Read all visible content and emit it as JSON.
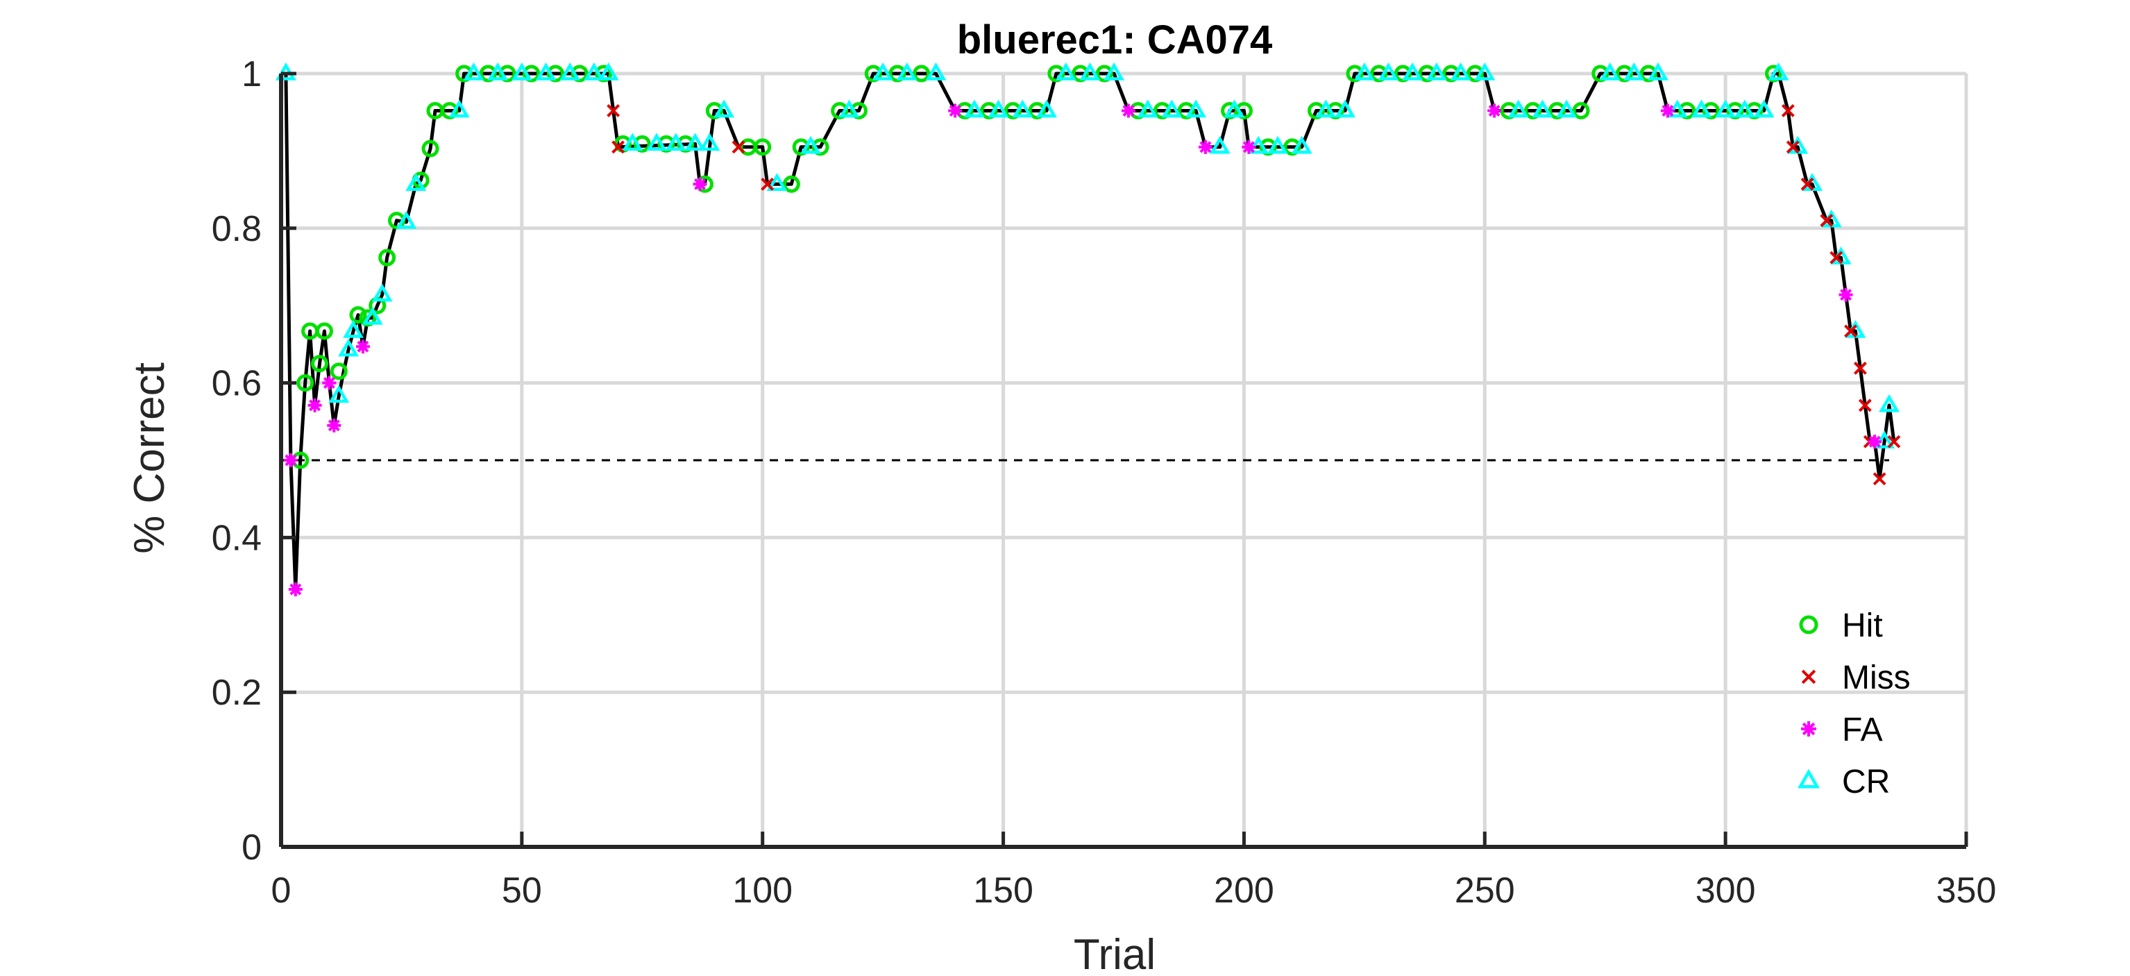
{
  "chart_data": {
    "type": "line",
    "title": "bluerec1: CA074",
    "xlabel": "Trial",
    "ylabel": "% Correct",
    "xlim": [
      0,
      350
    ],
    "ylim": [
      0,
      1
    ],
    "xticks": [
      0,
      50,
      100,
      150,
      200,
      250,
      300,
      350
    ],
    "xtick_labels": [
      "0",
      "50",
      "100",
      "150",
      "200",
      "250",
      "300",
      "350"
    ],
    "yticks": [
      0,
      0.2,
      0.4,
      0.6,
      0.8,
      1
    ],
    "ytick_labels": [
      "0",
      "0.2",
      "0.4",
      "0.6",
      "0.8",
      "1"
    ],
    "grid": true,
    "legend_position": "bottom-right",
    "reference_line": {
      "y": 0.5,
      "x_range": [
        0,
        334
      ],
      "style": "dashed"
    },
    "colors": {
      "line": "#000000",
      "hit": "#00e000",
      "miss": "#e00000",
      "fa": "#ff00ff",
      "cr": "#00ffff",
      "grid": "#d9d9d9",
      "axis": "#262626"
    },
    "series": [
      {
        "name": "Hit",
        "marker": "circle",
        "color": "#00e000",
        "points": [
          [
            4,
            0.5
          ],
          [
            5,
            0.6
          ],
          [
            6,
            0.667
          ],
          [
            8,
            0.625
          ],
          [
            9,
            0.667
          ],
          [
            12,
            0.615
          ],
          [
            16,
            0.688
          ],
          [
            18,
            0.684
          ],
          [
            20,
            0.7
          ],
          [
            22,
            0.762
          ],
          [
            24,
            0.81
          ],
          [
            29,
            0.862
          ],
          [
            31,
            0.903
          ],
          [
            32,
            0.952
          ],
          [
            35,
            0.952
          ],
          [
            38,
            1
          ],
          [
            43,
            1
          ],
          [
            47,
            1
          ],
          [
            52,
            1
          ],
          [
            57,
            1
          ],
          [
            62,
            1
          ],
          [
            67,
            1
          ],
          [
            71,
            0.909
          ],
          [
            75,
            0.909
          ],
          [
            80,
            0.909
          ],
          [
            84,
            0.909
          ],
          [
            88,
            0.857
          ],
          [
            90,
            0.952
          ],
          [
            97,
            0.905
          ],
          [
            100,
            0.905
          ],
          [
            106,
            0.857
          ],
          [
            108,
            0.905
          ],
          [
            112,
            0.905
          ],
          [
            116,
            0.952
          ],
          [
            120,
            0.952
          ],
          [
            123,
            1
          ],
          [
            128,
            1
          ],
          [
            133,
            1
          ],
          [
            142,
            0.952
          ],
          [
            147,
            0.952
          ],
          [
            152,
            0.952
          ],
          [
            157,
            0.952
          ],
          [
            161,
            1
          ],
          [
            166,
            1
          ],
          [
            171,
            1
          ],
          [
            178,
            0.952
          ],
          [
            183,
            0.952
          ],
          [
            188,
            0.952
          ],
          [
            197,
            0.952
          ],
          [
            200,
            0.952
          ],
          [
            205,
            0.905
          ],
          [
            210,
            0.905
          ],
          [
            215,
            0.952
          ],
          [
            219,
            0.952
          ],
          [
            223,
            1
          ],
          [
            228,
            1
          ],
          [
            233,
            1
          ],
          [
            238,
            1
          ],
          [
            243,
            1
          ],
          [
            248,
            1
          ],
          [
            255,
            0.952
          ],
          [
            260,
            0.952
          ],
          [
            265,
            0.952
          ],
          [
            270,
            0.952
          ],
          [
            274,
            1
          ],
          [
            279,
            1
          ],
          [
            284,
            1
          ],
          [
            292,
            0.952
          ],
          [
            297,
            0.952
          ],
          [
            302,
            0.952
          ],
          [
            306,
            0.952
          ],
          [
            310,
            1
          ]
        ]
      },
      {
        "name": "Miss",
        "marker": "x",
        "color": "#e00000",
        "points": [
          [
            69,
            0.952
          ],
          [
            70,
            0.905
          ],
          [
            95,
            0.905
          ],
          [
            101,
            0.857
          ],
          [
            313,
            0.952
          ],
          [
            314,
            0.905
          ],
          [
            317,
            0.857
          ],
          [
            321,
            0.81
          ],
          [
            323,
            0.762
          ],
          [
            326,
            0.667
          ],
          [
            328,
            0.619
          ],
          [
            329,
            0.571
          ],
          [
            330,
            0.524
          ],
          [
            332,
            0.476
          ],
          [
            335,
            0.524
          ]
        ]
      },
      {
        "name": "FA",
        "marker": "asterisk",
        "color": "#ff00ff",
        "points": [
          [
            2,
            0.5
          ],
          [
            3,
            0.333
          ],
          [
            7,
            0.571
          ],
          [
            10,
            0.6
          ],
          [
            11,
            0.545
          ],
          [
            17,
            0.647
          ],
          [
            87,
            0.857
          ],
          [
            140,
            0.952
          ],
          [
            176,
            0.952
          ],
          [
            192,
            0.905
          ],
          [
            201,
            0.905
          ],
          [
            252,
            0.952
          ],
          [
            288,
            0.952
          ],
          [
            325,
            0.714
          ],
          [
            331,
            0.524
          ]
        ]
      },
      {
        "name": "CR",
        "marker": "triangle",
        "color": "#00ffff",
        "points": [
          [
            1,
            1
          ],
          [
            12,
            0.583
          ],
          [
            14,
            0.643
          ],
          [
            15,
            0.667
          ],
          [
            19,
            0.684
          ],
          [
            21,
            0.714
          ],
          [
            26,
            0.808
          ],
          [
            28,
            0.857
          ],
          [
            37,
            0.952
          ],
          [
            40,
            1
          ],
          [
            45,
            1
          ],
          [
            50,
            1
          ],
          [
            55,
            1
          ],
          [
            60,
            1
          ],
          [
            65,
            1
          ],
          [
            68,
            1
          ],
          [
            73,
            0.909
          ],
          [
            78,
            0.909
          ],
          [
            82,
            0.909
          ],
          [
            86,
            0.909
          ],
          [
            89,
            0.909
          ],
          [
            92,
            0.952
          ],
          [
            103,
            0.857
          ],
          [
            110,
            0.905
          ],
          [
            118,
            0.952
          ],
          [
            125,
            1
          ],
          [
            130,
            1
          ],
          [
            136,
            1
          ],
          [
            144,
            0.952
          ],
          [
            149,
            0.952
          ],
          [
            154,
            0.952
          ],
          [
            159,
            0.952
          ],
          [
            163,
            1
          ],
          [
            168,
            1
          ],
          [
            173,
            1
          ],
          [
            180,
            0.952
          ],
          [
            185,
            0.952
          ],
          [
            190,
            0.952
          ],
          [
            195,
            0.905
          ],
          [
            198,
            0.952
          ],
          [
            203,
            0.905
          ],
          [
            207,
            0.905
          ],
          [
            212,
            0.905
          ],
          [
            217,
            0.952
          ],
          [
            221,
            0.952
          ],
          [
            225,
            1
          ],
          [
            230,
            1
          ],
          [
            235,
            1
          ],
          [
            240,
            1
          ],
          [
            245,
            1
          ],
          [
            250,
            1
          ],
          [
            257,
            0.952
          ],
          [
            262,
            0.952
          ],
          [
            267,
            0.952
          ],
          [
            276,
            1
          ],
          [
            281,
            1
          ],
          [
            286,
            1
          ],
          [
            290,
            0.952
          ],
          [
            295,
            0.952
          ],
          [
            300,
            0.952
          ],
          [
            304,
            0.952
          ],
          [
            308,
            0.952
          ],
          [
            311,
            1
          ],
          [
            315,
            0.905
          ],
          [
            318,
            0.857
          ],
          [
            322,
            0.81
          ],
          [
            324,
            0.762
          ],
          [
            327,
            0.667
          ],
          [
            333,
            0.524
          ],
          [
            334,
            0.571
          ]
        ]
      }
    ],
    "trace": [
      [
        1,
        1
      ],
      [
        2,
        0.5
      ],
      [
        3,
        0.333
      ],
      [
        4,
        0.5
      ],
      [
        5,
        0.6
      ],
      [
        6,
        0.667
      ],
      [
        7,
        0.571
      ],
      [
        8,
        0.625
      ],
      [
        9,
        0.667
      ],
      [
        10,
        0.6
      ],
      [
        11,
        0.545
      ],
      [
        12,
        0.583
      ],
      [
        13,
        0.615
      ],
      [
        14,
        0.643
      ],
      [
        15,
        0.667
      ],
      [
        16,
        0.688
      ],
      [
        17,
        0.647
      ],
      [
        18,
        0.684
      ],
      [
        19,
        0.684
      ],
      [
        20,
        0.7
      ],
      [
        21,
        0.714
      ],
      [
        22,
        0.762
      ],
      [
        24,
        0.81
      ],
      [
        26,
        0.808
      ],
      [
        28,
        0.857
      ],
      [
        29,
        0.862
      ],
      [
        31,
        0.903
      ],
      [
        32,
        0.952
      ],
      [
        37,
        0.952
      ],
      [
        38,
        1
      ],
      [
        68,
        1
      ],
      [
        69,
        0.952
      ],
      [
        70,
        0.905
      ],
      [
        86,
        0.909
      ],
      [
        87,
        0.857
      ],
      [
        88,
        0.857
      ],
      [
        90,
        0.952
      ],
      [
        92,
        0.952
      ],
      [
        95,
        0.905
      ],
      [
        100,
        0.905
      ],
      [
        101,
        0.857
      ],
      [
        106,
        0.857
      ],
      [
        108,
        0.905
      ],
      [
        112,
        0.905
      ],
      [
        116,
        0.952
      ],
      [
        120,
        0.952
      ],
      [
        123,
        1
      ],
      [
        136,
        1
      ],
      [
        140,
        0.952
      ],
      [
        159,
        0.952
      ],
      [
        161,
        1
      ],
      [
        173,
        1
      ],
      [
        176,
        0.952
      ],
      [
        190,
        0.952
      ],
      [
        192,
        0.905
      ],
      [
        195,
        0.905
      ],
      [
        197,
        0.952
      ],
      [
        200,
        0.952
      ],
      [
        201,
        0.905
      ],
      [
        212,
        0.905
      ],
      [
        215,
        0.952
      ],
      [
        221,
        0.952
      ],
      [
        223,
        1
      ],
      [
        250,
        1
      ],
      [
        252,
        0.952
      ],
      [
        270,
        0.952
      ],
      [
        274,
        1
      ],
      [
        286,
        1
      ],
      [
        288,
        0.952
      ],
      [
        308,
        0.952
      ],
      [
        310,
        1
      ],
      [
        311,
        1
      ],
      [
        313,
        0.952
      ],
      [
        314,
        0.905
      ],
      [
        315,
        0.905
      ],
      [
        317,
        0.857
      ],
      [
        318,
        0.857
      ],
      [
        321,
        0.81
      ],
      [
        322,
        0.81
      ],
      [
        323,
        0.762
      ],
      [
        324,
        0.762
      ],
      [
        325,
        0.714
      ],
      [
        326,
        0.667
      ],
      [
        327,
        0.667
      ],
      [
        328,
        0.619
      ],
      [
        329,
        0.571
      ],
      [
        330,
        0.524
      ],
      [
        331,
        0.524
      ],
      [
        332,
        0.476
      ],
      [
        333,
        0.524
      ],
      [
        334,
        0.571
      ],
      [
        335,
        0.524
      ]
    ]
  }
}
